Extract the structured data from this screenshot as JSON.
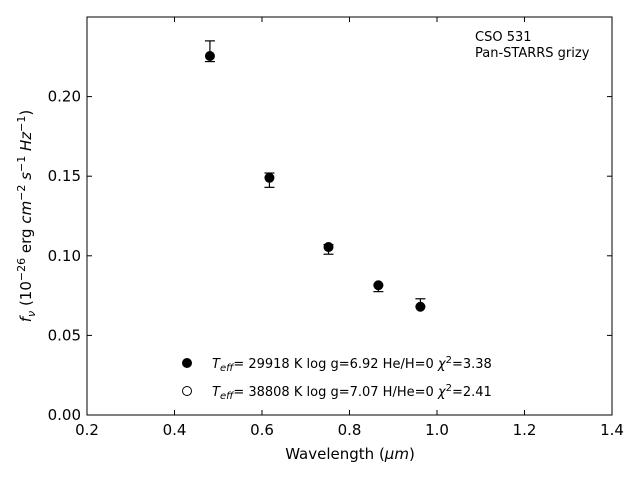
{
  "chart_data": {
    "type": "scatter",
    "title": "",
    "annotation_lines": [
      "CSO 531",
      "Pan-STARRS grizy"
    ],
    "xlabel": {
      "main": "Wavelength (",
      "unit": "μm",
      "close": ")"
    },
    "ylabel": {
      "symbol": "f",
      "symbol_sub": "ν",
      "open": " (10",
      "exp1": "−26",
      "mid1": " erg ",
      "cm": "cm",
      "exp2": "−2",
      "s": "s",
      "exp3": "−1",
      "hz": "Hz",
      "exp4": "−1",
      "close": ")"
    },
    "xlim": [
      0.2,
      1.4
    ],
    "ylim": [
      0.0,
      0.25
    ],
    "xticks": [
      "0.2",
      "0.4",
      "0.6",
      "0.8",
      "1.0",
      "1.2",
      "1.4"
    ],
    "xtick_values": [
      0.2,
      0.4,
      0.6,
      0.8,
      1.0,
      1.2,
      1.4
    ],
    "yticks": [
      "0.00",
      "0.05",
      "0.10",
      "0.15",
      "0.20"
    ],
    "ytick_values": [
      0.0,
      0.05,
      0.1,
      0.15,
      0.2
    ],
    "grid": false,
    "observed": {
      "points": [
        {
          "x": 0.481,
          "y": 0.2285,
          "err_low": 0.0065,
          "err_high": 0.0065
        },
        {
          "x": 0.617,
          "y": 0.1475,
          "err_low": 0.0045,
          "err_high": 0.0045
        },
        {
          "x": 0.752,
          "y": 0.104,
          "err_low": 0.003,
          "err_high": 0.003
        },
        {
          "x": 0.866,
          "y": 0.0795,
          "err_low": 0.002,
          "err_high": 0.002
        },
        {
          "x": 0.962,
          "y": 0.0705,
          "err_low": 0.0025,
          "err_high": 0.0025
        }
      ]
    },
    "series": [
      {
        "marker": "filled-circle",
        "values": [
          {
            "x": 0.481,
            "y": 0.2255
          },
          {
            "x": 0.617,
            "y": 0.149
          },
          {
            "x": 0.752,
            "y": 0.1055
          },
          {
            "x": 0.866,
            "y": 0.0815
          },
          {
            "x": 0.962,
            "y": 0.068
          }
        ],
        "legend": {
          "T": "T",
          "eff": "eff",
          "text": "= 29918 K  log g=6.92  He/H=0  ",
          "chi": "χ",
          "chi_exp": "2",
          "chi_val": "=3.38"
        }
      },
      {
        "marker": "open-circle",
        "values": [],
        "legend": {
          "T": "T",
          "eff": "eff",
          "text": "= 38808 K  log g=7.07  H/He=0  ",
          "chi": "χ",
          "chi_exp": "2",
          "chi_val": "=2.41"
        }
      }
    ],
    "legend_placement": "lower-center"
  }
}
